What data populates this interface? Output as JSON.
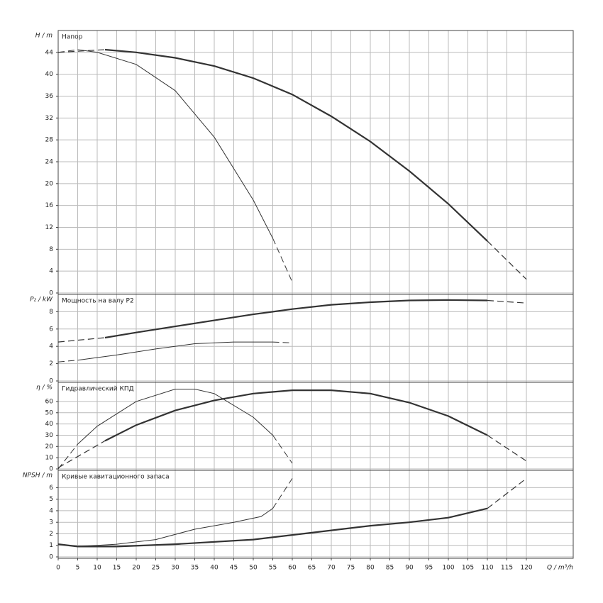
{
  "chart_data": [
    {
      "type": "line",
      "title": "Напор",
      "y_label": "H / m",
      "xlim": [
        0,
        132
      ],
      "xticks": [
        0,
        5,
        10,
        15,
        20,
        25,
        30,
        35,
        40,
        45,
        50,
        55,
        60,
        65,
        70,
        75,
        80,
        85,
        90,
        95,
        100,
        105,
        110,
        115,
        120
      ],
      "ylim": [
        0,
        48
      ],
      "yticks": [
        0,
        4,
        8,
        12,
        16,
        20,
        24,
        28,
        32,
        36,
        40,
        44
      ],
      "grid": true,
      "series": [
        {
          "x": [
            0,
            12
          ],
          "values": [
            44,
            44.5
          ],
          "dash": true,
          "width": 1.2,
          "color": "#333333"
        },
        {
          "x": [
            12,
            20,
            30,
            40,
            50,
            60,
            70,
            80,
            90,
            100,
            110
          ],
          "values": [
            44.5,
            44,
            43,
            41.5,
            39.3,
            36.3,
            32.3,
            27.7,
            22.3,
            16.3,
            9.5
          ],
          "dash": false,
          "width": 2.2,
          "color": "#333333"
        },
        {
          "x": [
            110,
            115,
            120
          ],
          "values": [
            9.5,
            6,
            2.5
          ],
          "dash": true,
          "width": 1.2,
          "color": "#333333"
        },
        {
          "x": [
            0,
            5
          ],
          "values": [
            44,
            44.5
          ],
          "dash": true,
          "width": 1,
          "color": "#333333"
        },
        {
          "x": [
            5,
            10,
            20,
            30,
            40,
            50,
            55
          ],
          "values": [
            44.5,
            44,
            41.8,
            37,
            28.5,
            17,
            10
          ],
          "dash": false,
          "width": 1,
          "color": "#333333"
        },
        {
          "x": [
            55,
            60
          ],
          "values": [
            10,
            2
          ],
          "dash": true,
          "width": 1,
          "color": "#333333"
        }
      ]
    },
    {
      "type": "line",
      "title": "Мощность на валу P2",
      "y_label": "P₂ / kW",
      "xlim": [
        0,
        132
      ],
      "xticks": [
        0,
        5,
        10,
        15,
        20,
        25,
        30,
        35,
        40,
        45,
        50,
        55,
        60,
        65,
        70,
        75,
        80,
        85,
        90,
        95,
        100,
        105,
        110,
        115,
        120
      ],
      "ylim": [
        0,
        10
      ],
      "yticks": [
        0,
        2,
        4,
        6,
        8
      ],
      "grid": true,
      "series": [
        {
          "x": [
            0,
            12
          ],
          "values": [
            4.5,
            5
          ],
          "dash": true,
          "width": 1.2,
          "color": "#333333"
        },
        {
          "x": [
            12,
            20,
            30,
            40,
            50,
            60,
            70,
            80,
            90,
            100,
            110
          ],
          "values": [
            5,
            5.6,
            6.3,
            7,
            7.7,
            8.3,
            8.8,
            9.1,
            9.3,
            9.35,
            9.3
          ],
          "dash": false,
          "width": 2.2,
          "color": "#333333"
        },
        {
          "x": [
            110,
            120
          ],
          "values": [
            9.3,
            9
          ],
          "dash": true,
          "width": 1.2,
          "color": "#333333"
        },
        {
          "x": [
            0,
            5
          ],
          "values": [
            2.2,
            2.4
          ],
          "dash": true,
          "width": 1,
          "color": "#333333"
        },
        {
          "x": [
            5,
            15,
            25,
            35,
            45,
            55
          ],
          "values": [
            2.4,
            3,
            3.7,
            4.3,
            4.5,
            4.5
          ],
          "dash": false,
          "width": 1,
          "color": "#333333"
        },
        {
          "x": [
            55,
            60
          ],
          "values": [
            4.5,
            4.4
          ],
          "dash": true,
          "width": 1,
          "color": "#333333"
        }
      ]
    },
    {
      "type": "line",
      "title": "Гидравлический КПД",
      "y_label": "η / %",
      "xlim": [
        0,
        132
      ],
      "xticks": [
        0,
        5,
        10,
        15,
        20,
        25,
        30,
        35,
        40,
        45,
        50,
        55,
        60,
        65,
        70,
        75,
        80,
        85,
        90,
        95,
        100,
        105,
        110,
        115,
        120
      ],
      "ylim": [
        0,
        77
      ],
      "yticks": [
        0,
        10,
        20,
        30,
        40,
        50,
        60
      ],
      "grid": true,
      "series": [
        {
          "x": [
            0,
            12
          ],
          "values": [
            1,
            25
          ],
          "dash": true,
          "width": 1.2,
          "color": "#333333"
        },
        {
          "x": [
            12,
            20,
            30,
            40,
            50,
            60,
            70,
            80,
            90,
            100,
            110
          ],
          "values": [
            25,
            39,
            52,
            61,
            67,
            70,
            70,
            67,
            59,
            47,
            30
          ],
          "dash": false,
          "width": 2.2,
          "color": "#333333"
        },
        {
          "x": [
            110,
            120
          ],
          "values": [
            30,
            7
          ],
          "dash": true,
          "width": 1.2,
          "color": "#333333"
        },
        {
          "x": [
            0,
            5
          ],
          "values": [
            0,
            22
          ],
          "dash": true,
          "width": 1,
          "color": "#333333"
        },
        {
          "x": [
            5,
            10,
            20,
            30,
            35,
            40,
            50,
            55
          ],
          "values": [
            22,
            38,
            60,
            71,
            71,
            67,
            46,
            30
          ],
          "dash": false,
          "width": 1,
          "color": "#333333"
        },
        {
          "x": [
            55,
            60
          ],
          "values": [
            30,
            5
          ],
          "dash": true,
          "width": 1,
          "color": "#333333"
        }
      ]
    },
    {
      "type": "line",
      "title": "Кривые кавитационного запаса",
      "y_label": "NPSH / m",
      "x_label": "Q / m³/h",
      "xlim": [
        0,
        132
      ],
      "xticks": [
        0,
        5,
        10,
        15,
        20,
        25,
        30,
        35,
        40,
        45,
        50,
        55,
        60,
        65,
        70,
        75,
        80,
        85,
        90,
        95,
        100,
        105,
        110,
        115,
        120
      ],
      "ylim": [
        0,
        7.5
      ],
      "yticks": [
        0,
        1,
        2,
        3,
        4,
        5,
        6
      ],
      "grid": true,
      "series": [
        {
          "x": [
            0,
            5,
            15,
            30,
            50,
            60,
            70,
            80,
            90,
            100,
            110
          ],
          "values": [
            1.1,
            0.9,
            0.9,
            1.1,
            1.5,
            1.9,
            2.3,
            2.7,
            3,
            3.4,
            4.2
          ],
          "dash": false,
          "width": 2.2,
          "color": "#333333"
        },
        {
          "x": [
            110,
            120
          ],
          "values": [
            4.2,
            6.8
          ],
          "dash": true,
          "width": 1.2,
          "color": "#333333"
        },
        {
          "x": [
            5,
            15,
            25,
            35,
            45,
            52,
            55
          ],
          "values": [
            0.9,
            1.1,
            1.5,
            2.4,
            3,
            3.5,
            4.2
          ],
          "dash": false,
          "width": 1,
          "color": "#333333"
        },
        {
          "x": [
            55,
            60
          ],
          "values": [
            4.2,
            6.8
          ],
          "dash": true,
          "width": 1,
          "color": "#333333"
        }
      ]
    }
  ]
}
